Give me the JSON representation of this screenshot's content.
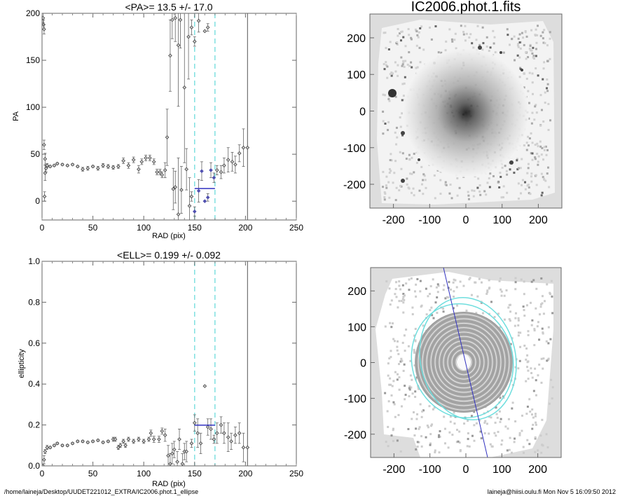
{
  "footer": {
    "path": "/home/laineja/Desktop/UUDET221012_EXTRA/IC2006.phot.1_ellipse",
    "user_date": "laineja@hiisi.oulu.fi  Mon Nov  5 16:09:50 2012"
  },
  "colors": {
    "points": "#555555",
    "fit_points": "#5050b0",
    "mean_line": "#3030c0",
    "range_lines": "#7fe0e0",
    "cutoff_line": "#555555"
  },
  "chart_data": [
    {
      "type": "scatter",
      "title": "<PA>=  13.5 +/-  17.0",
      "xlabel": "RAD (pix)",
      "ylabel": "PA",
      "xlim": [
        0,
        250
      ],
      "ylim": [
        -20,
        200
      ],
      "xticks": [
        "0",
        "50",
        "100",
        "150",
        "200",
        "250"
      ],
      "yticks": [
        "0",
        "50",
        "100",
        "150",
        "200"
      ],
      "mean": 13.5,
      "mean_range": [
        150,
        170
      ],
      "range_markers": [
        150,
        170
      ],
      "cutoff": 202,
      "points": [
        [
          1,
          195,
          5
        ],
        [
          1.5,
          188,
          5
        ],
        [
          2,
          183,
          5
        ],
        [
          2,
          60,
          5
        ],
        [
          2.5,
          5,
          5
        ],
        [
          3,
          30,
          8
        ],
        [
          3,
          45,
          6
        ],
        [
          4,
          35,
          4
        ],
        [
          5,
          38,
          2
        ],
        [
          8,
          37,
          1
        ],
        [
          12,
          38,
          1
        ],
        [
          15,
          40,
          1
        ],
        [
          20,
          39,
          1
        ],
        [
          25,
          38,
          1
        ],
        [
          30,
          39,
          1
        ],
        [
          35,
          37,
          1
        ],
        [
          40,
          34,
          2
        ],
        [
          45,
          35,
          2
        ],
        [
          50,
          37,
          1
        ],
        [
          55,
          35,
          2
        ],
        [
          60,
          38,
          2
        ],
        [
          65,
          37,
          2
        ],
        [
          70,
          36,
          2
        ],
        [
          75,
          37,
          2
        ],
        [
          80,
          43,
          3
        ],
        [
          85,
          38,
          3
        ],
        [
          90,
          44,
          3
        ],
        [
          95,
          34,
          4
        ],
        [
          98,
          42,
          3
        ],
        [
          102,
          46,
          3
        ],
        [
          106,
          46,
          3
        ],
        [
          110,
          42,
          3
        ],
        [
          113,
          31,
          3
        ],
        [
          116,
          31,
          3
        ],
        [
          118,
          28,
          3
        ],
        [
          121,
          33,
          8
        ],
        [
          123,
          68,
          30
        ],
        [
          126,
          155,
          38
        ],
        [
          128,
          193,
          20
        ],
        [
          129,
          13,
          22
        ],
        [
          131,
          195,
          25
        ],
        [
          131,
          15,
          17
        ],
        [
          134,
          166,
          65
        ],
        [
          134,
          -14,
          60
        ],
        [
          136,
          193,
          30
        ],
        [
          137,
          12,
          25
        ],
        [
          140,
          121,
          80
        ],
        [
          142,
          34,
          22
        ],
        [
          144,
          175,
          45
        ],
        [
          145,
          -5,
          30
        ],
        [
          147,
          185,
          8
        ],
        [
          147,
          5,
          5
        ],
        [
          150,
          170,
          5
        ],
        [
          154,
          192,
          12
        ],
        [
          160,
          181,
          0
        ],
        [
          163,
          185,
          4
        ],
        [
          172,
          33,
          5
        ],
        [
          176,
          31,
          7
        ],
        [
          179,
          38,
          8
        ],
        [
          183,
          44,
          13
        ],
        [
          187,
          42,
          10
        ],
        [
          190,
          39,
          9
        ],
        [
          194,
          51,
          9
        ],
        [
          198,
          57,
          20
        ],
        [
          202,
          57,
          0
        ]
      ],
      "fit_points": [
        [
          150,
          -11,
          5
        ],
        [
          154,
          11,
          12
        ],
        [
          157,
          32,
          10
        ],
        [
          160,
          0,
          0
        ],
        [
          163,
          4,
          4
        ],
        [
          166,
          33,
          8
        ],
        [
          169,
          25,
          5
        ]
      ]
    },
    {
      "type": "scatter",
      "title": "<ELL>= 0.199 +/-  0.092",
      "xlabel": "RAD (pix)",
      "ylabel": "ellipticity",
      "xlim": [
        0,
        250
      ],
      "ylim": [
        0,
        1
      ],
      "xticks": [
        "0",
        "50",
        "100",
        "150",
        "200",
        "250"
      ],
      "yticks": [
        "0.0",
        "0.2",
        "0.4",
        "0.6",
        "0.8",
        "1.0"
      ],
      "mean": 0.199,
      "mean_range": [
        150,
        170
      ],
      "range_markers": [
        150,
        170
      ],
      "cutoff": 202,
      "points": [
        [
          1,
          0.0,
          0.01
        ],
        [
          2,
          0.03,
          0.02
        ],
        [
          3,
          0.07,
          0.01
        ],
        [
          5,
          0.09,
          0.01
        ],
        [
          8,
          0.09,
          0.005
        ],
        [
          12,
          0.1,
          0.005
        ],
        [
          15,
          0.11,
          0.005
        ],
        [
          20,
          0.1,
          0.005
        ],
        [
          25,
          0.1,
          0.005
        ],
        [
          30,
          0.11,
          0.005
        ],
        [
          35,
          0.12,
          0.005
        ],
        [
          40,
          0.12,
          0.005
        ],
        [
          45,
          0.115,
          0.005
        ],
        [
          50,
          0.12,
          0.005
        ],
        [
          55,
          0.125,
          0.005
        ],
        [
          60,
          0.115,
          0.005
        ],
        [
          65,
          0.12,
          0.005
        ],
        [
          70,
          0.13,
          0.01
        ],
        [
          72,
          0.13,
          0.01
        ],
        [
          75,
          0.09,
          0.01
        ],
        [
          77,
          0.1,
          0.01
        ],
        [
          80,
          0.12,
          0.01
        ],
        [
          82,
          0.1,
          0.01
        ],
        [
          85,
          0.13,
          0.01
        ],
        [
          90,
          0.12,
          0.01
        ],
        [
          95,
          0.13,
          0.01
        ],
        [
          100,
          0.12,
          0.01
        ],
        [
          105,
          0.13,
          0.01
        ],
        [
          107,
          0.16,
          0.015
        ],
        [
          110,
          0.13,
          0.015
        ],
        [
          115,
          0.13,
          0.015
        ],
        [
          118,
          0.17,
          0.015
        ],
        [
          121,
          0.15,
          0.03
        ],
        [
          124,
          0.05,
          0.05
        ],
        [
          126,
          0.01,
          0.05
        ],
        [
          128,
          0.06,
          0.05
        ],
        [
          130,
          0.08,
          0.04
        ],
        [
          133,
          0.02,
          0.05
        ],
        [
          135,
          0.13,
          0.05
        ],
        [
          138,
          0.01,
          0.05
        ],
        [
          140,
          0.07,
          0.04
        ],
        [
          142,
          0.07,
          0.05
        ],
        [
          147,
          0.11,
          0.02
        ],
        [
          150,
          0.21,
          0.04
        ],
        [
          153,
          0.16,
          0.07
        ],
        [
          156,
          0.11,
          0.05
        ],
        [
          160,
          0.39,
          0
        ],
        [
          163,
          0.19,
          0.04
        ],
        [
          166,
          0.18,
          0.05
        ],
        [
          169,
          0.13,
          0.02
        ],
        [
          172,
          0.16,
          0.05
        ],
        [
          176,
          0.2,
          0.04
        ],
        [
          179,
          0.16,
          0.05
        ],
        [
          183,
          0.14,
          0.07
        ],
        [
          186,
          0.12,
          0.04
        ],
        [
          190,
          0.15,
          0.04
        ],
        [
          194,
          0.16,
          0.05
        ],
        [
          198,
          0.09,
          0.07
        ],
        [
          202,
          0.09,
          0
        ]
      ]
    },
    {
      "type": "heatmap",
      "title": "IC2006.phot.1.fits",
      "xlim": [
        -265,
        265
      ],
      "ylim": [
        -265,
        265
      ],
      "xticks": [
        "-200",
        "-100",
        "0",
        "100",
        "200"
      ],
      "yticks": [
        "-200",
        "-100",
        "0",
        "100",
        "200"
      ]
    },
    {
      "type": "heatmap",
      "title": "",
      "xlim": [
        -265,
        265
      ],
      "ylim": [
        -265,
        265
      ],
      "xticks": [
        "-200",
        "-100",
        "0",
        "100",
        "200"
      ],
      "yticks": [
        "-200",
        "-100",
        "0",
        "100",
        "200"
      ]
    }
  ]
}
